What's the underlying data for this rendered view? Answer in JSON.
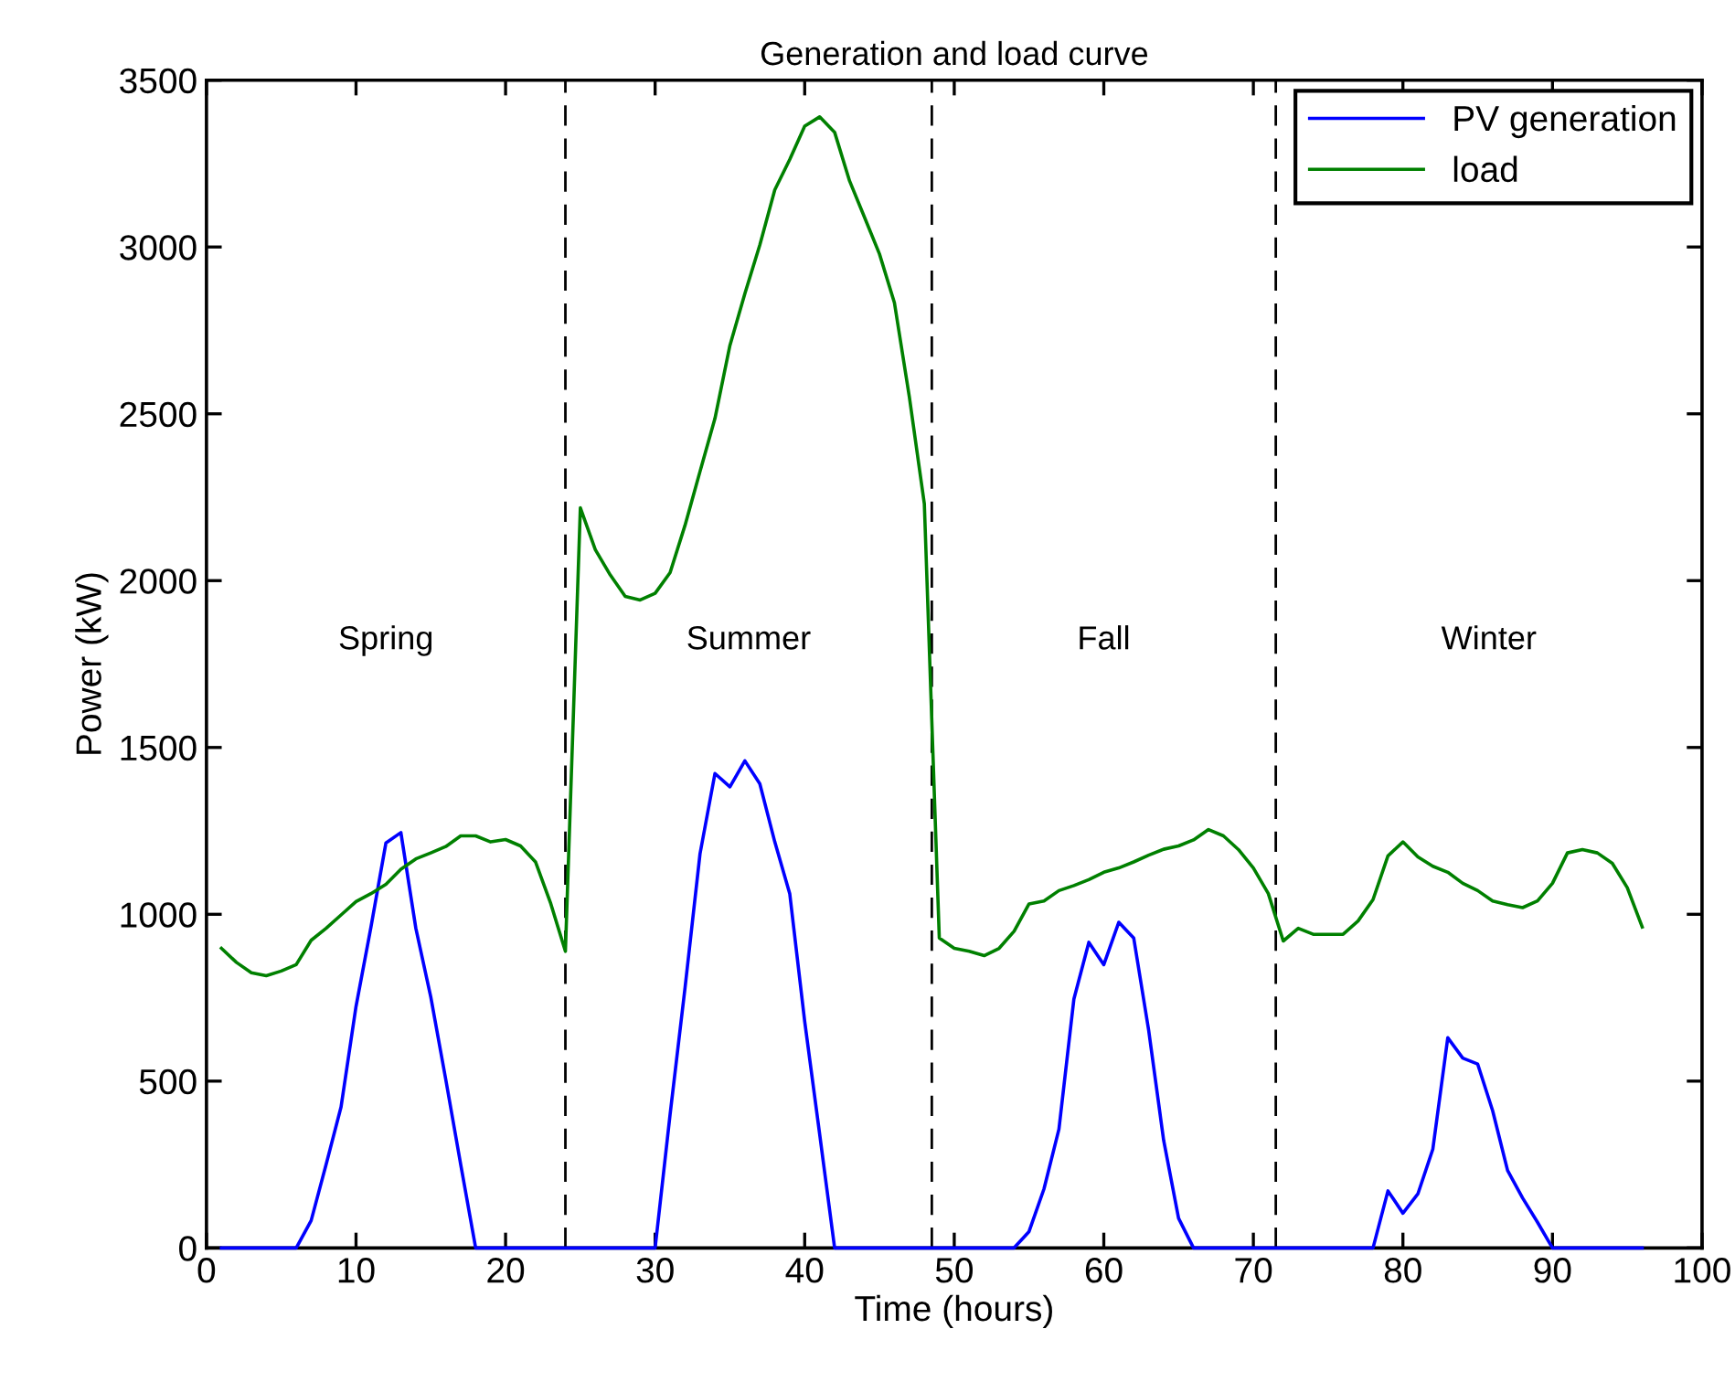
{
  "chart_data": {
    "type": "line",
    "title": "Generation and load curve",
    "xlabel": "Time (hours)",
    "ylabel": "Power (kW)",
    "x": [
      1,
      2,
      3,
      4,
      5,
      6,
      7,
      8,
      9,
      10,
      11,
      12,
      13,
      14,
      15,
      16,
      17,
      18,
      19,
      20,
      21,
      22,
      23,
      24,
      25,
      26,
      27,
      28,
      29,
      30,
      31,
      32,
      33,
      34,
      35,
      36,
      37,
      38,
      39,
      40,
      41,
      42,
      43,
      44,
      45,
      46,
      47,
      48,
      49,
      50,
      51,
      52,
      53,
      54,
      55,
      56,
      57,
      58,
      59,
      60,
      61,
      62,
      63,
      64,
      65,
      66,
      67,
      68,
      69,
      70,
      71,
      72,
      73,
      74,
      75,
      76,
      77,
      78,
      79,
      80,
      81,
      82,
      83,
      84,
      85,
      86,
      87,
      88,
      89,
      90,
      91,
      92,
      93,
      94,
      95,
      96
    ],
    "series": [
      {
        "name": "PV generation",
        "color": "#0000ff",
        "values": [
          0,
          0,
          0,
          0,
          0,
          0,
          82,
          250,
          423,
          724,
          962,
          1214,
          1245,
          958,
          752,
          505,
          250,
          0,
          0,
          0,
          0,
          0,
          0,
          0,
          0,
          0,
          0,
          0,
          0,
          0,
          400,
          780,
          1181,
          1422,
          1382,
          1460,
          1391,
          1217,
          1062,
          679,
          341,
          0,
          0,
          0,
          0,
          0,
          0,
          0,
          0,
          0,
          0,
          0,
          0,
          0,
          49,
          177,
          356,
          746,
          916,
          849,
          976,
          929,
          652,
          323,
          89,
          0,
          0,
          0,
          0,
          0,
          0,
          0,
          0,
          0,
          0,
          0,
          0,
          0,
          171,
          104,
          162,
          296,
          630,
          569,
          551,
          411,
          232,
          150,
          77,
          0,
          0,
          0,
          0,
          0,
          0,
          0
        ]
      },
      {
        "name": "load",
        "color": "#008000",
        "values": [
          898,
          856,
          825,
          816,
          830,
          849,
          922,
          958,
          998,
          1038,
          1062,
          1090,
          1135,
          1166,
          1184,
          1203,
          1235,
          1235,
          1217,
          1224,
          1205,
          1157,
          1035,
          889,
          2218,
          2093,
          2017,
          1953,
          1942,
          1962,
          2024,
          2166,
          2327,
          2486,
          2705,
          2860,
          3006,
          3171,
          3262,
          3362,
          3390,
          3344,
          3198,
          3089,
          2979,
          2833,
          2550,
          2230,
          929,
          898,
          889,
          876,
          898,
          949,
          1031,
          1040,
          1071,
          1086,
          1104,
          1126,
          1139,
          1157,
          1177,
          1195,
          1205,
          1223,
          1254,
          1235,
          1194,
          1139,
          1062,
          920,
          958,
          940,
          940,
          940,
          980,
          1044,
          1175,
          1217,
          1172,
          1144,
          1126,
          1093,
          1071,
          1040,
          1029,
          1020,
          1040,
          1093,
          1184,
          1194,
          1184,
          1153,
          1080,
          962
        ]
      }
    ],
    "xlim": [
      0,
      100
    ],
    "xticks": [
      0,
      10,
      20,
      30,
      40,
      50,
      60,
      70,
      80,
      90,
      100
    ],
    "ylim": [
      0,
      3500
    ],
    "yticks": [
      0,
      500,
      1000,
      1500,
      2000,
      2500,
      3000,
      3500
    ],
    "ref_lines": [
      {
        "axis": "x",
        "value": 24,
        "color": "#000000",
        "line_style": "dashed"
      },
      {
        "axis": "x",
        "value": 48.5,
        "color": "#000000",
        "line_style": "dashed"
      },
      {
        "axis": "x",
        "value": 71.5,
        "color": "#000000",
        "line_style": "dashed"
      }
    ],
    "annotations": [
      "Spring",
      "Summer",
      "Fall",
      "Winter"
    ],
    "legend": "top right",
    "grid": false,
    "marker": "none",
    "line_style": "solid"
  }
}
